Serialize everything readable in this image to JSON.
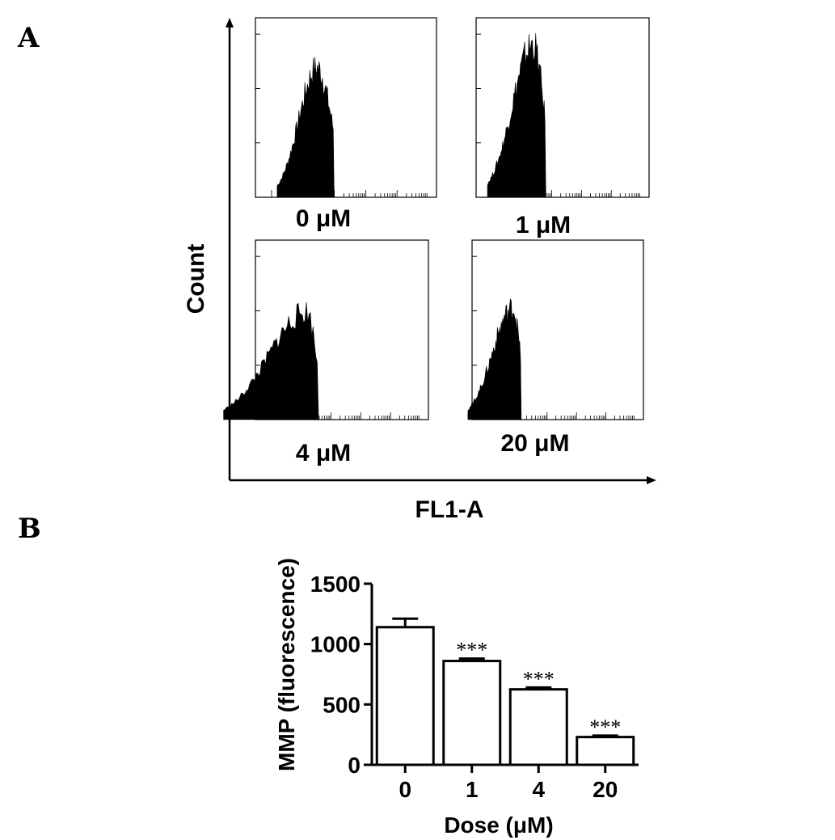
{
  "panel_a": {
    "letter": "A",
    "y_axis_label": "Count",
    "x_axis_label": "FL1-A",
    "histograms": [
      {
        "label": "0 μM",
        "peak_pos": 0.34,
        "peak_height": 0.72,
        "left_spread": 0.1,
        "right_spread": 0.08
      },
      {
        "label": "1 μM",
        "peak_pos": 0.33,
        "peak_height": 0.85,
        "left_spread": 0.12,
        "right_spread": 0.06
      },
      {
        "label": "4 μM",
        "peak_pos": 0.3,
        "peak_height": 0.6,
        "left_spread": 0.22,
        "right_spread": 0.05
      },
      {
        "label": "20 μM",
        "peak_pos": 0.24,
        "peak_height": 0.62,
        "left_spread": 0.12,
        "right_spread": 0.04
      }
    ]
  },
  "panel_b": {
    "letter": "B",
    "chart_data": {
      "type": "bar",
      "categories": [
        "0",
        "1",
        "4",
        "20"
      ],
      "values": [
        1140,
        860,
        625,
        230
      ],
      "errors": [
        70,
        20,
        15,
        12
      ],
      "annotations": [
        "",
        "***",
        "***",
        "***"
      ],
      "xlabel": "Dose (μM)",
      "ylabel": "MMP (fluorescence)",
      "ylim": [
        0,
        1500
      ],
      "yticks": [
        0,
        500,
        1000,
        1500
      ],
      "ytick_labels": [
        "0",
        "500",
        "1000",
        "1500"
      ],
      "grid": false,
      "bar_color": "#ffffff",
      "edge_color": "#000000"
    }
  }
}
